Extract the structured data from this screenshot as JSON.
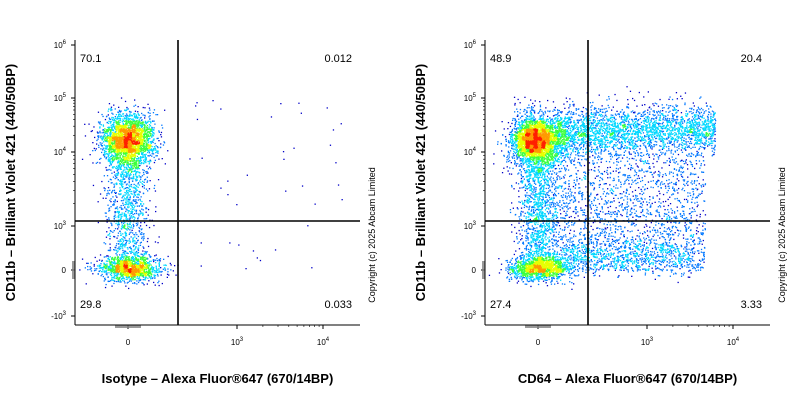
{
  "chart_data": [
    {
      "type": "scatter",
      "plot_kind": "flow-cytometry-density",
      "xlabel": "Isotype – Alexa Fluor®647 (670/14BP)",
      "ylabel": "CD11b – Brilliant Violet 421 (440/50BP)",
      "x_scale": "biexponential",
      "y_scale": "biexponential",
      "x_ticks": [
        {
          "base": "0",
          "exp": ""
        },
        {
          "base": "10",
          "exp": "3"
        },
        {
          "base": "10",
          "exp": "4"
        }
      ],
      "y_ticks": [
        {
          "base": "10",
          "exp": "6"
        },
        {
          "base": "10",
          "exp": "5"
        },
        {
          "base": "10",
          "exp": "4"
        },
        {
          "base": "10",
          "exp": "3"
        },
        {
          "base": "0",
          "exp": ""
        },
        {
          "base": "-10",
          "exp": "3"
        }
      ],
      "quadrant_gate": {
        "x": 300,
        "y": 1000
      },
      "quadrants": {
        "upper_left": "70.1",
        "upper_right": "0.012",
        "lower_left": "29.8",
        "lower_right": "0.033"
      },
      "populations": [
        {
          "name": "cd11b-high",
          "x_center": 0,
          "y_center": 20000
        },
        {
          "name": "cd11b-low",
          "x_center": 0,
          "y_center": 0
        }
      ],
      "copyright": "Copyright (c) 2025 Abcam Limited"
    },
    {
      "type": "scatter",
      "plot_kind": "flow-cytometry-density",
      "xlabel": "CD64 – Alexa Fluor®647 (670/14BP)",
      "ylabel": "CD11b – Brilliant Violet 421 (440/50BP)",
      "x_scale": "biexponential",
      "y_scale": "biexponential",
      "x_ticks": [
        {
          "base": "0",
          "exp": ""
        },
        {
          "base": "10",
          "exp": "3"
        },
        {
          "base": "10",
          "exp": "4"
        }
      ],
      "y_ticks": [
        {
          "base": "10",
          "exp": "6"
        },
        {
          "base": "10",
          "exp": "5"
        },
        {
          "base": "10",
          "exp": "4"
        },
        {
          "base": "10",
          "exp": "3"
        },
        {
          "base": "0",
          "exp": ""
        },
        {
          "base": "-10",
          "exp": "3"
        }
      ],
      "quadrant_gate": {
        "x": 300,
        "y": 1000
      },
      "quadrants": {
        "upper_left": "48.9",
        "upper_right": "20.4",
        "lower_left": "27.4",
        "lower_right": "3.33"
      },
      "populations": [
        {
          "name": "cd11b-high",
          "x_center": 0,
          "y_center": 20000
        },
        {
          "name": "cd11b-high-cd64-positive-band",
          "x_center": 3000,
          "y_center": 20000
        },
        {
          "name": "cd11b-low",
          "x_center": 0,
          "y_center": 0
        }
      ],
      "copyright": "Copyright (c) 2025 Abcam Limited"
    }
  ],
  "colors": {
    "density_scale": [
      "#0000c8",
      "#0077ff",
      "#00d8ff",
      "#3cff3c",
      "#e6ff00",
      "#ff9a00",
      "#ff2000"
    ],
    "gate_lines": "#000000",
    "axes": "#000000"
  }
}
